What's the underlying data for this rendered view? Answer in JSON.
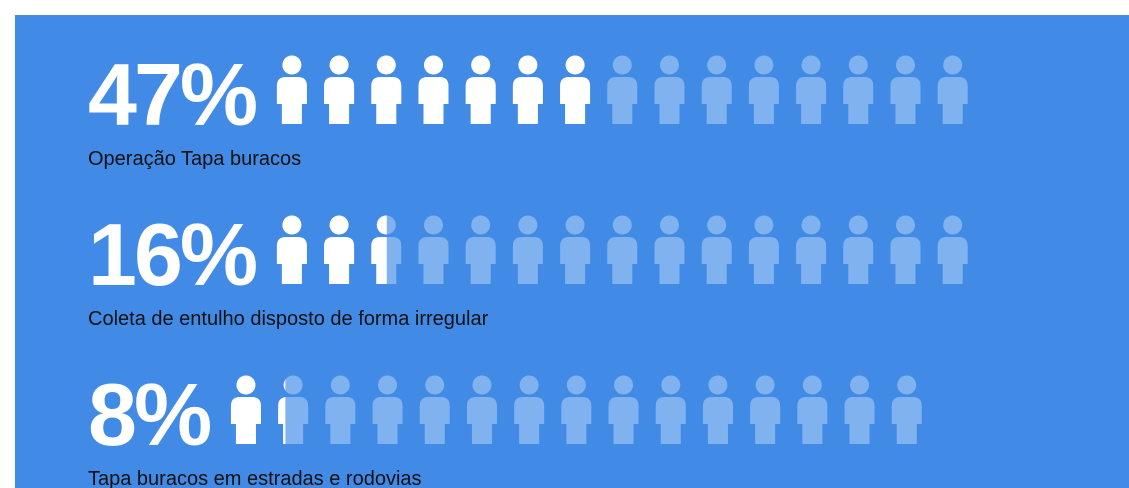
{
  "chart_data": {
    "type": "pictogram",
    "categories": [
      "Operação Tapa buracos",
      "Coleta de entulho disposto de forma irregular",
      "Tapa buracos em estradas e rodovias"
    ],
    "values": [
      47,
      16,
      8
    ],
    "value_labels": [
      "47%",
      "16%",
      "8%"
    ],
    "color": "#ffffff",
    "rest_color": "#80b2f0",
    "background": "#418be6"
  }
}
